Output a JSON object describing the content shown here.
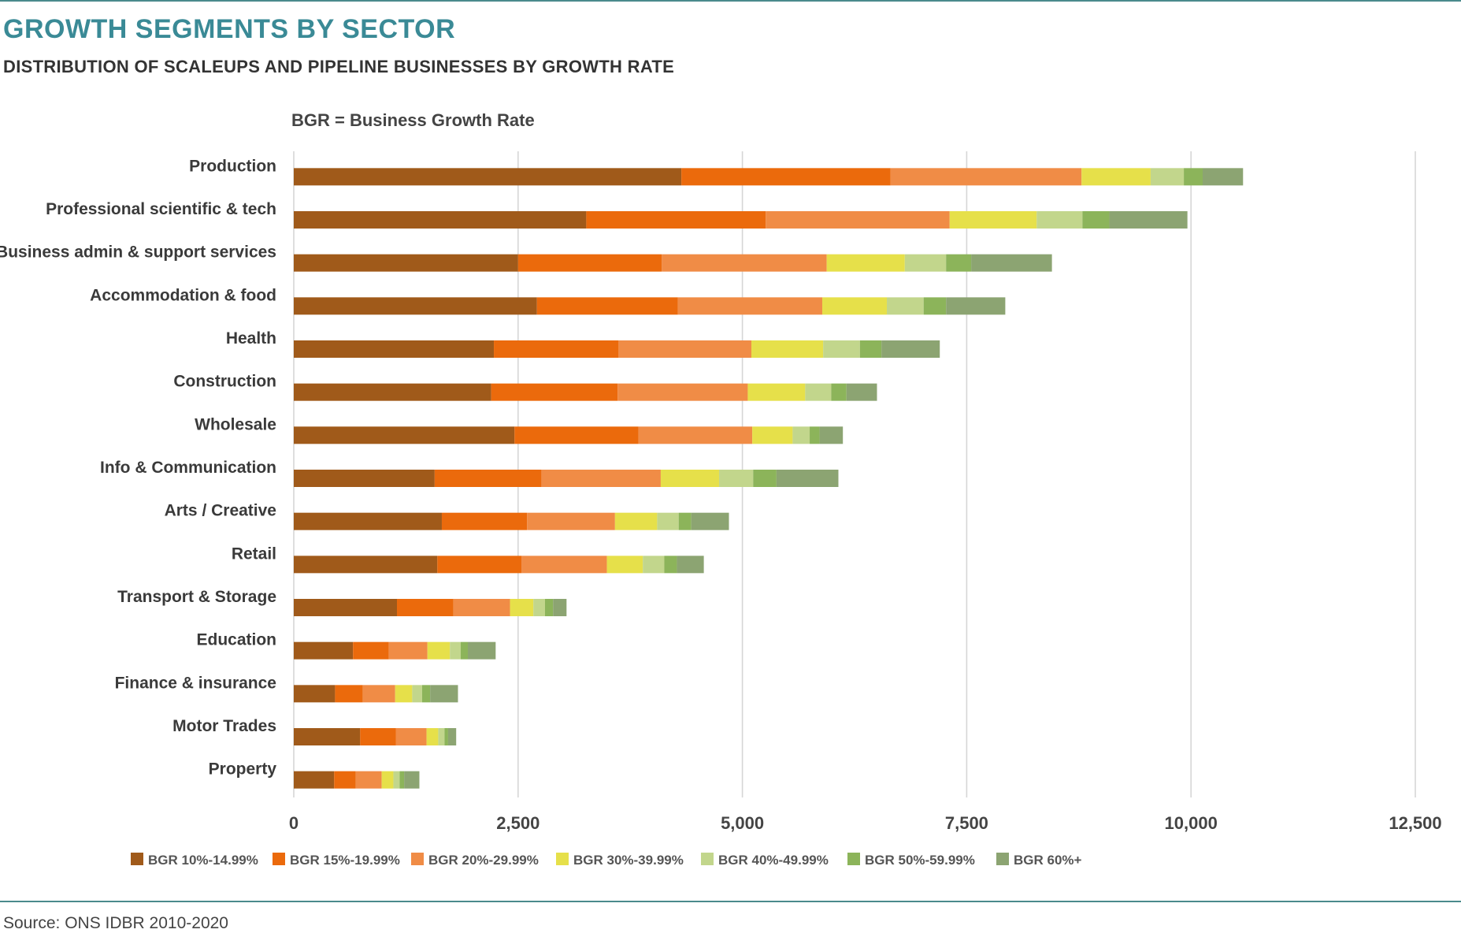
{
  "title": "GROWTH SEGMENTS BY SECTOR",
  "subtitle": "DISTRIBUTION OF SCALEUPS AND PIPELINE BUSINESSES BY GROWTH RATE",
  "note": "BGR = Business Growth Rate",
  "source": "Source: ONS IDBR 2010-2020",
  "chart_data": {
    "type": "bar",
    "orientation": "horizontal",
    "stacked": true,
    "xlim": [
      0,
      12500
    ],
    "x_ticks": [
      0,
      2500,
      5000,
      7500,
      10000,
      12500
    ],
    "x_tick_labels": [
      "0",
      "2,500",
      "5,000",
      "7,500",
      "10,000",
      "12,500"
    ],
    "grid": true,
    "legend_position": "bottom",
    "categories": [
      "Production",
      "Professional scientific & tech",
      "Business admin & support services",
      "Accommodation & food",
      "Health",
      "Construction",
      "Wholesale",
      "Info & Communication",
      "Arts / Creative",
      "Retail",
      "Transport & Storage",
      "Education",
      "Finance & insurance",
      "Motor Trades",
      "Property"
    ],
    "series": [
      {
        "name": "BGR 10%-14.99%",
        "color": "#a05a1a",
        "values": [
          4320,
          3260,
          2500,
          2710,
          2230,
          2200,
          2460,
          1570,
          1650,
          1600,
          1150,
          660,
          460,
          740,
          450
        ]
      },
      {
        "name": "BGR 15%-19.99%",
        "color": "#eb6a0c",
        "values": [
          2330,
          2000,
          1600,
          1570,
          1390,
          1410,
          1380,
          1190,
          950,
          940,
          630,
          400,
          310,
          400,
          240
        ]
      },
      {
        "name": "BGR 20%-29.99%",
        "color": "#f08c46",
        "values": [
          2130,
          2050,
          1840,
          1610,
          1480,
          1450,
          1270,
          1330,
          980,
          950,
          630,
          430,
          360,
          340,
          290
        ]
      },
      {
        "name": "BGR 30%-39.99%",
        "color": "#e6e04a",
        "values": [
          770,
          970,
          870,
          720,
          800,
          640,
          450,
          650,
          470,
          400,
          260,
          250,
          190,
          130,
          130
        ]
      },
      {
        "name": "BGR 40%-49.99%",
        "color": "#c2d68c",
        "values": [
          370,
          510,
          460,
          410,
          410,
          290,
          190,
          380,
          240,
          240,
          130,
          120,
          110,
          70,
          70
        ]
      },
      {
        "name": "BGR 50%-59.99%",
        "color": "#8cb45a",
        "values": [
          210,
          300,
          280,
          250,
          240,
          170,
          110,
          260,
          140,
          140,
          90,
          80,
          90,
          40,
          50
        ]
      },
      {
        "name": "BGR 60%+",
        "color": "#8ca472",
        "values": [
          450,
          870,
          900,
          660,
          650,
          340,
          260,
          690,
          420,
          300,
          150,
          310,
          310,
          90,
          170
        ]
      }
    ]
  }
}
